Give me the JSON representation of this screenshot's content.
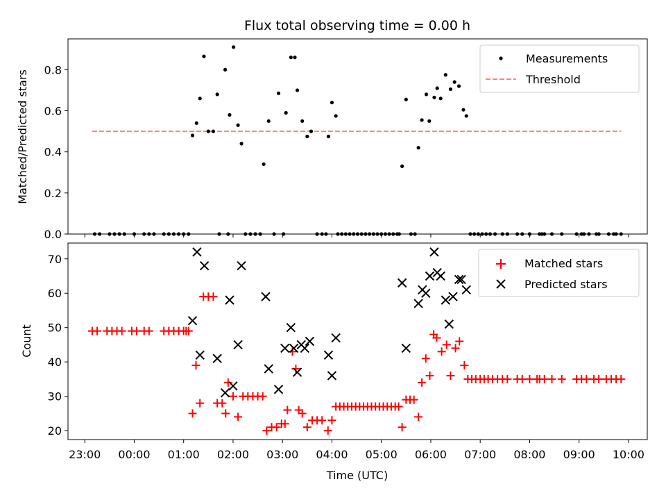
{
  "title": "Flux total observing time = 0.00 h",
  "xlabel": "Time (UTC)",
  "xticks": [
    "23:00",
    "00:00",
    "01:00",
    "02:00",
    "03:00",
    "04:00",
    "05:00",
    "06:00",
    "07:00",
    "08:00",
    "09:00",
    "10:00"
  ],
  "chart_data": [
    {
      "type": "scatter",
      "ylabel": "Matched/Predicted stars",
      "xlim_hours": [
        22.66,
        34.38
      ],
      "ylim": [
        0,
        0.95
      ],
      "yticks": [
        "0.0",
        "0.2",
        "0.4",
        "0.6",
        "0.8"
      ],
      "legend": {
        "placement": "top-right",
        "entries": [
          "Measurements",
          "Threshold"
        ]
      },
      "threshold": {
        "name": "Threshold",
        "value": 0.5,
        "x_start": 23.15,
        "x_end": 33.85,
        "color": "#ff7f7f"
      },
      "series": [
        {
          "name": "Measurements",
          "color": "#000000",
          "points": [
            [
              23.2,
              0
            ],
            [
              23.3,
              0
            ],
            [
              23.5,
              0
            ],
            [
              23.6,
              0
            ],
            [
              23.7,
              0
            ],
            [
              23.8,
              0
            ],
            [
              24.0,
              0
            ],
            [
              24.2,
              0
            ],
            [
              24.3,
              0
            ],
            [
              24.4,
              0
            ],
            [
              24.6,
              0
            ],
            [
              24.7,
              0
            ],
            [
              24.8,
              0
            ],
            [
              24.9,
              0
            ],
            [
              25.0,
              0
            ],
            [
              25.1,
              0
            ],
            [
              25.18,
              0.48
            ],
            [
              25.26,
              0.54
            ],
            [
              25.33,
              0.66
            ],
            [
              25.41,
              0.865
            ],
            [
              25.5,
              0.5
            ],
            [
              25.6,
              0.5
            ],
            [
              25.68,
              0.68
            ],
            [
              25.72,
              0
            ],
            [
              25.84,
              0.8
            ],
            [
              25.9,
              0
            ],
            [
              25.93,
              0.58
            ],
            [
              26.01,
              0.91
            ],
            [
              26.1,
              0.53
            ],
            [
              26.17,
              0.44
            ],
            [
              26.25,
              0
            ],
            [
              26.35,
              0
            ],
            [
              26.45,
              0
            ],
            [
              26.55,
              0
            ],
            [
              26.62,
              0.34
            ],
            [
              26.72,
              0.55
            ],
            [
              26.83,
              0
            ],
            [
              26.92,
              0.685
            ],
            [
              27.02,
              0
            ],
            [
              27.07,
              0.59
            ],
            [
              27.17,
              0.86
            ],
            [
              27.25,
              0.86
            ],
            [
              27.3,
              0.7
            ],
            [
              27.4,
              0.55
            ],
            [
              27.5,
              0.475
            ],
            [
              27.58,
              0.5
            ],
            [
              27.7,
              0
            ],
            [
              27.8,
              0
            ],
            [
              27.88,
              0
            ],
            [
              27.93,
              0.475
            ],
            [
              28.0,
              0.64
            ],
            [
              28.08,
              0.575
            ],
            [
              28.12,
              0
            ],
            [
              28.2,
              0
            ],
            [
              28.28,
              0
            ],
            [
              28.36,
              0
            ],
            [
              28.44,
              0
            ],
            [
              28.52,
              0
            ],
            [
              28.6,
              0
            ],
            [
              28.68,
              0
            ],
            [
              28.76,
              0
            ],
            [
              28.84,
              0
            ],
            [
              28.92,
              0
            ],
            [
              29.0,
              0
            ],
            [
              29.08,
              0
            ],
            [
              29.16,
              0
            ],
            [
              29.24,
              0
            ],
            [
              29.32,
              0
            ],
            [
              29.36,
              0
            ],
            [
              29.42,
              0.33
            ],
            [
              29.5,
              0.655
            ],
            [
              29.6,
              0
            ],
            [
              29.68,
              0
            ],
            [
              29.75,
              0.42
            ],
            [
              29.82,
              0.555
            ],
            [
              29.91,
              0.68
            ],
            [
              29.97,
              0.55
            ],
            [
              30.07,
              0.665
            ],
            [
              30.13,
              0.71
            ],
            [
              30.2,
              0.66
            ],
            [
              30.3,
              0.775
            ],
            [
              30.4,
              0.705
            ],
            [
              30.48,
              0.74
            ],
            [
              30.57,
              0.72
            ],
            [
              30.66,
              0.605
            ],
            [
              30.72,
              0.575
            ],
            [
              30.8,
              0
            ],
            [
              30.88,
              0
            ],
            [
              30.96,
              0
            ],
            [
              31.04,
              0
            ],
            [
              31.12,
              0
            ],
            [
              31.2,
              0
            ],
            [
              31.3,
              0
            ],
            [
              31.45,
              0
            ],
            [
              31.55,
              0
            ],
            [
              31.75,
              0
            ],
            [
              31.85,
              0
            ],
            [
              32.0,
              0
            ],
            [
              32.2,
              0
            ],
            [
              32.25,
              0
            ],
            [
              32.3,
              0
            ],
            [
              32.45,
              0
            ],
            [
              32.65,
              0
            ],
            [
              32.95,
              0
            ],
            [
              33.05,
              0
            ],
            [
              33.1,
              0
            ],
            [
              33.2,
              0
            ],
            [
              33.35,
              0
            ],
            [
              33.4,
              0
            ],
            [
              33.6,
              0
            ],
            [
              33.7,
              0
            ],
            [
              33.75,
              0
            ],
            [
              33.85,
              0
            ]
          ]
        }
      ]
    },
    {
      "type": "scatter",
      "ylabel": "Count",
      "xlim_hours": [
        22.66,
        34.38
      ],
      "ylim": [
        17.4,
        74.6
      ],
      "yticks": [
        "20",
        "30",
        "40",
        "50",
        "60",
        "70"
      ],
      "legend": {
        "placement": "top-right",
        "entries": [
          "Matched stars",
          "Predicted stars"
        ]
      },
      "series": [
        {
          "name": "Matched stars",
          "marker": "plus",
          "color": "#ff0000",
          "points": [
            [
              23.15,
              49
            ],
            [
              23.25,
              49
            ],
            [
              23.45,
              49
            ],
            [
              23.55,
              49
            ],
            [
              23.65,
              49
            ],
            [
              23.75,
              49
            ],
            [
              23.95,
              49
            ],
            [
              24.05,
              49
            ],
            [
              24.2,
              49
            ],
            [
              24.3,
              49
            ],
            [
              24.6,
              49
            ],
            [
              24.7,
              49
            ],
            [
              24.8,
              49
            ],
            [
              24.9,
              49
            ],
            [
              25.0,
              49
            ],
            [
              25.05,
              49
            ],
            [
              25.1,
              49
            ],
            [
              25.18,
              25
            ],
            [
              25.25,
              39
            ],
            [
              25.33,
              28
            ],
            [
              25.4,
              59
            ],
            [
              25.5,
              59
            ],
            [
              25.6,
              59
            ],
            [
              25.68,
              28
            ],
            [
              25.78,
              28
            ],
            [
              25.85,
              25
            ],
            [
              25.9,
              34
            ],
            [
              26.0,
              30
            ],
            [
              26.1,
              24
            ],
            [
              26.2,
              30
            ],
            [
              26.3,
              30
            ],
            [
              26.4,
              30
            ],
            [
              26.5,
              30
            ],
            [
              26.6,
              30
            ],
            [
              26.68,
              20
            ],
            [
              26.78,
              21
            ],
            [
              26.88,
              21
            ],
            [
              26.98,
              22
            ],
            [
              27.05,
              22
            ],
            [
              27.1,
              26
            ],
            [
              27.2,
              43
            ],
            [
              27.27,
              38
            ],
            [
              27.33,
              26
            ],
            [
              27.4,
              25
            ],
            [
              27.5,
              21
            ],
            [
              27.6,
              23
            ],
            [
              27.7,
              23
            ],
            [
              27.8,
              23
            ],
            [
              27.92,
              20
            ],
            [
              28.0,
              23
            ],
            [
              28.08,
              27
            ],
            [
              28.16,
              27
            ],
            [
              28.24,
              27
            ],
            [
              28.32,
              27
            ],
            [
              28.4,
              27
            ],
            [
              28.48,
              27
            ],
            [
              28.56,
              27
            ],
            [
              28.64,
              27
            ],
            [
              28.72,
              27
            ],
            [
              28.8,
              27
            ],
            [
              28.88,
              27
            ],
            [
              28.96,
              27
            ],
            [
              29.04,
              27
            ],
            [
              29.12,
              27
            ],
            [
              29.2,
              27
            ],
            [
              29.28,
              27
            ],
            [
              29.35,
              27
            ],
            [
              29.42,
              21
            ],
            [
              29.5,
              29
            ],
            [
              29.58,
              29
            ],
            [
              29.66,
              29
            ],
            [
              29.75,
              24
            ],
            [
              29.82,
              34
            ],
            [
              29.9,
              41
            ],
            [
              29.98,
              36
            ],
            [
              30.06,
              48
            ],
            [
              30.12,
              47
            ],
            [
              30.22,
              43
            ],
            [
              30.32,
              45
            ],
            [
              30.4,
              36
            ],
            [
              30.5,
              44
            ],
            [
              30.58,
              46
            ],
            [
              30.68,
              39
            ],
            [
              30.75,
              35
            ],
            [
              30.83,
              35
            ],
            [
              30.91,
              35
            ],
            [
              31.0,
              35
            ],
            [
              31.08,
              35
            ],
            [
              31.16,
              35
            ],
            [
              31.25,
              35
            ],
            [
              31.35,
              35
            ],
            [
              31.45,
              35
            ],
            [
              31.55,
              35
            ],
            [
              31.75,
              35
            ],
            [
              31.85,
              35
            ],
            [
              32.0,
              35
            ],
            [
              32.15,
              35
            ],
            [
              32.2,
              35
            ],
            [
              32.3,
              35
            ],
            [
              32.45,
              35
            ],
            [
              32.65,
              35
            ],
            [
              32.95,
              35
            ],
            [
              33.05,
              35
            ],
            [
              33.15,
              35
            ],
            [
              33.3,
              35
            ],
            [
              33.4,
              35
            ],
            [
              33.55,
              35
            ],
            [
              33.65,
              35
            ],
            [
              33.75,
              35
            ],
            [
              33.85,
              35
            ]
          ]
        },
        {
          "name": "Predicted stars",
          "marker": "x",
          "color": "#000000",
          "points": [
            [
              25.18,
              52
            ],
            [
              25.27,
              72
            ],
            [
              25.33,
              42
            ],
            [
              25.42,
              68
            ],
            [
              25.68,
              41
            ],
            [
              25.84,
              31
            ],
            [
              25.93,
              58
            ],
            [
              26.0,
              33
            ],
            [
              26.1,
              45
            ],
            [
              26.17,
              68
            ],
            [
              26.66,
              59
            ],
            [
              26.72,
              38
            ],
            [
              26.92,
              32
            ],
            [
              27.05,
              44
            ],
            [
              27.17,
              50
            ],
            [
              27.23,
              44
            ],
            [
              27.3,
              37
            ],
            [
              27.38,
              45
            ],
            [
              27.45,
              44
            ],
            [
              27.55,
              46
            ],
            [
              27.93,
              42
            ],
            [
              28.0,
              36
            ],
            [
              28.08,
              47
            ],
            [
              29.42,
              63
            ],
            [
              29.5,
              44
            ],
            [
              29.75,
              57
            ],
            [
              29.83,
              61
            ],
            [
              29.9,
              60
            ],
            [
              29.98,
              65
            ],
            [
              30.07,
              72
            ],
            [
              30.13,
              66
            ],
            [
              30.2,
              65
            ],
            [
              30.3,
              58
            ],
            [
              30.37,
              51
            ],
            [
              30.45,
              59
            ],
            [
              30.57,
              64
            ],
            [
              30.62,
              64
            ],
            [
              30.72,
              61
            ]
          ]
        }
      ]
    }
  ]
}
